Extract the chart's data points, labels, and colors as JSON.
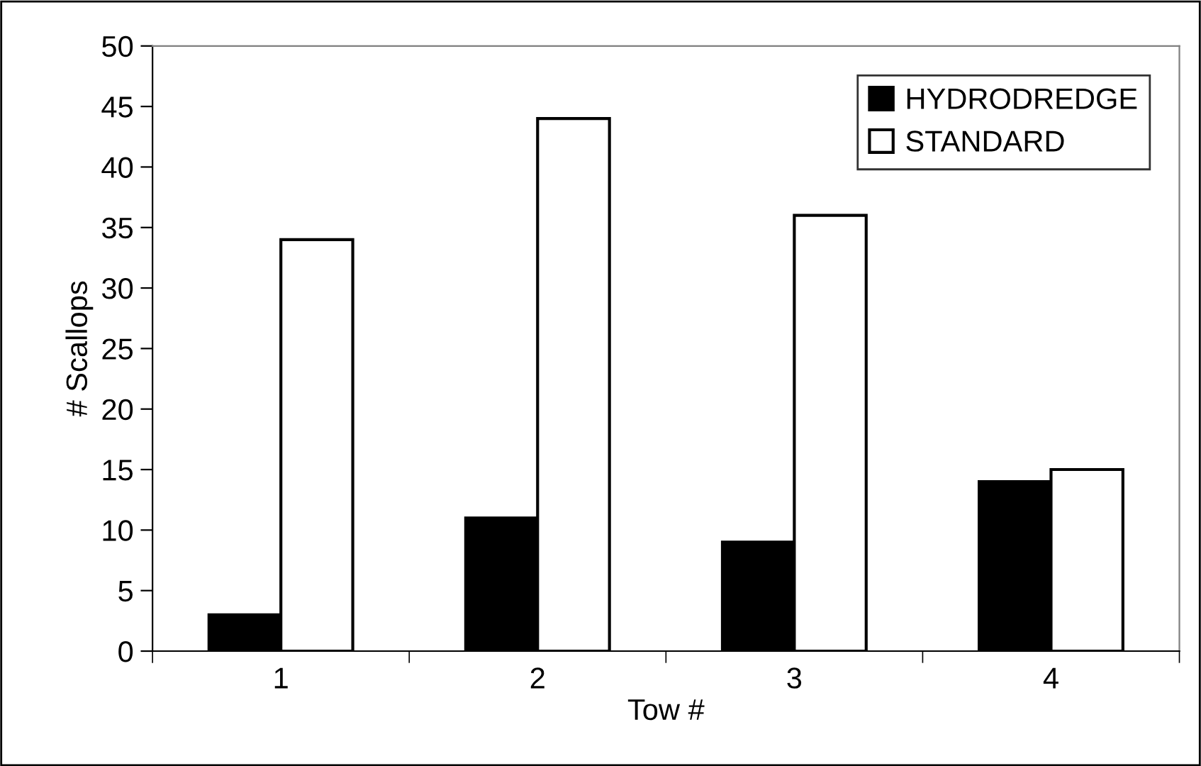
{
  "chart_data": {
    "type": "bar",
    "xlabel": "Tow #",
    "ylabel": "# Scallops",
    "categories": [
      "1",
      "2",
      "3",
      "4"
    ],
    "series": [
      {
        "name": "HYDRODREDGE",
        "color": "#000000",
        "values": [
          3,
          11,
          9,
          14
        ]
      },
      {
        "name": "STANDARD",
        "color": "#ffffff",
        "values": [
          34,
          44,
          36,
          15
        ]
      }
    ],
    "ylim": [
      0,
      50
    ],
    "yticks": [
      0,
      5,
      10,
      15,
      20,
      25,
      30,
      35,
      40,
      45,
      50
    ],
    "grid": false,
    "legend": "top right"
  }
}
